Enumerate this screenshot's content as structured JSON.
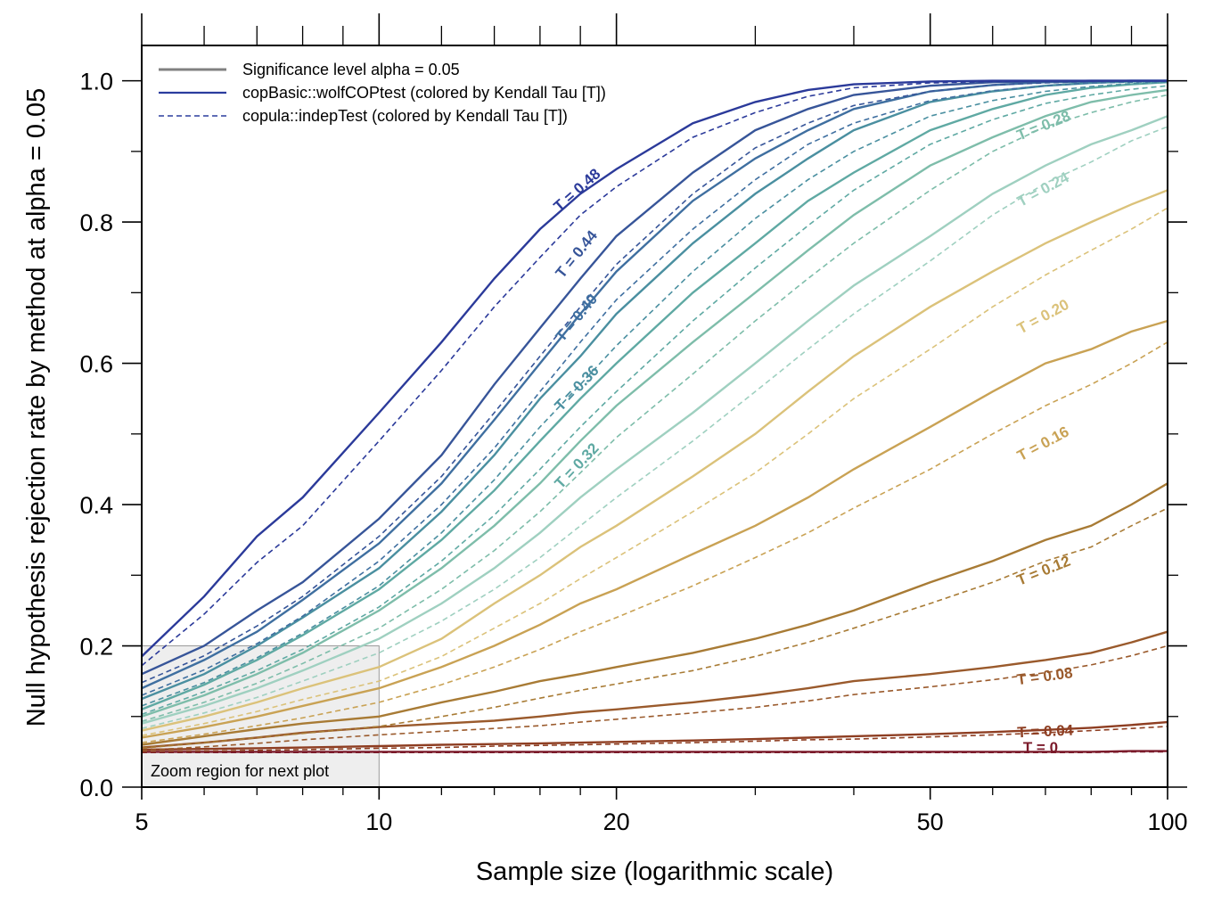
{
  "chart_data": {
    "type": "line",
    "xlabel": "Sample size (logarithmic scale)",
    "ylabel": "Null hypothesis rejection rate by method at alpha = 0.05",
    "x_scale": "log",
    "xlim": [
      5,
      100
    ],
    "ylim": [
      0,
      1.05
    ],
    "x_ticks": [
      5,
      10,
      20,
      50,
      100
    ],
    "x_minor_ticks": [
      6,
      7,
      8,
      9,
      12,
      14,
      16,
      18,
      30,
      40,
      60,
      70,
      80,
      90
    ],
    "y_ticks": [
      0.0,
      0.2,
      0.4,
      0.6,
      0.8,
      1.0
    ],
    "y_tick_labels": [
      "0.0",
      "0.2",
      "0.4",
      "0.6",
      "0.8",
      "1.0"
    ],
    "y_minor_ticks": [
      0.1,
      0.3,
      0.5,
      0.7,
      0.9
    ],
    "x": [
      5,
      6,
      7,
      8,
      10,
      12,
      14,
      16,
      18,
      20,
      25,
      30,
      35,
      40,
      50,
      60,
      70,
      80,
      90,
      100
    ],
    "legend": {
      "placement": "top-left",
      "entries": [
        {
          "label": "Significance level alpha = 0.05",
          "style": "solid",
          "color": "#808080"
        },
        {
          "label": "copBasic::wolfCOPtest (colored by Kendall Tau [T])",
          "style": "solid",
          "color": "#2b3d9e"
        },
        {
          "label": "copula::indepTest (colored by Kendall Tau [T])",
          "style": "dashed",
          "color": "#2b3d9e"
        }
      ]
    },
    "zoom_region": {
      "label": "Zoom region for next plot",
      "x": [
        5,
        10
      ],
      "y": [
        0,
        0.2
      ]
    },
    "series": [
      {
        "name": "T = 0",
        "tau": 0,
        "color": "#7b1a2a",
        "label_pos": {
          "x": 69,
          "y": 0.049
        },
        "wolf": [
          0.05,
          0.05,
          0.05,
          0.05,
          0.05,
          0.05,
          0.05,
          0.05,
          0.05,
          0.05,
          0.05,
          0.05,
          0.05,
          0.05,
          0.05,
          0.05,
          0.05,
          0.05,
          0.051,
          0.051
        ],
        "indep": [
          0.049,
          0.049,
          0.049,
          0.049,
          0.049,
          0.049,
          0.049,
          0.049,
          0.049,
          0.049,
          0.049,
          0.049,
          0.049,
          0.049,
          0.049,
          0.049,
          0.049,
          0.049,
          0.05,
          0.05
        ]
      },
      {
        "name": "T = 0.04",
        "tau": 0.04,
        "color": "#8e3e22",
        "label_pos": {
          "x": 70,
          "y": 0.072
        },
        "wolf": [
          0.053,
          0.054,
          0.055,
          0.056,
          0.058,
          0.06,
          0.061,
          0.062,
          0.063,
          0.064,
          0.066,
          0.068,
          0.07,
          0.072,
          0.075,
          0.078,
          0.081,
          0.084,
          0.088,
          0.092
        ],
        "indep": [
          0.05,
          0.051,
          0.052,
          0.053,
          0.055,
          0.056,
          0.058,
          0.059,
          0.06,
          0.061,
          0.063,
          0.065,
          0.067,
          0.068,
          0.071,
          0.074,
          0.077,
          0.08,
          0.083,
          0.086
        ]
      },
      {
        "name": "T = 0.08",
        "tau": 0.08,
        "color": "#9a5a2c",
        "label_pos": {
          "x": 70,
          "y": 0.15
        },
        "wolf": [
          0.056,
          0.063,
          0.07,
          0.077,
          0.085,
          0.09,
          0.094,
          0.1,
          0.106,
          0.11,
          0.12,
          0.13,
          0.14,
          0.15,
          0.16,
          0.17,
          0.18,
          0.19,
          0.205,
          0.22
        ],
        "indep": [
          0.052,
          0.057,
          0.062,
          0.067,
          0.074,
          0.079,
          0.083,
          0.087,
          0.092,
          0.096,
          0.105,
          0.113,
          0.122,
          0.131,
          0.142,
          0.152,
          0.162,
          0.173,
          0.186,
          0.2
        ]
      },
      {
        "name": "T = 0.12",
        "tau": 0.12,
        "color": "#a87b35",
        "label_pos": {
          "x": 70,
          "y": 0.3
        },
        "wolf": [
          0.06,
          0.072,
          0.082,
          0.09,
          0.1,
          0.12,
          0.135,
          0.15,
          0.16,
          0.17,
          0.19,
          0.21,
          0.23,
          0.25,
          0.29,
          0.32,
          0.35,
          0.37,
          0.4,
          0.43
        ],
        "indep": [
          0.055,
          0.063,
          0.07,
          0.076,
          0.086,
          0.1,
          0.113,
          0.126,
          0.137,
          0.146,
          0.165,
          0.185,
          0.205,
          0.225,
          0.26,
          0.29,
          0.32,
          0.34,
          0.37,
          0.395
        ]
      },
      {
        "name": "T = 0.16",
        "tau": 0.16,
        "color": "#c9a254",
        "label_pos": {
          "x": 70,
          "y": 0.48
        },
        "wolf": [
          0.07,
          0.085,
          0.1,
          0.115,
          0.14,
          0.17,
          0.2,
          0.23,
          0.26,
          0.28,
          0.33,
          0.37,
          0.41,
          0.45,
          0.51,
          0.56,
          0.6,
          0.62,
          0.645,
          0.66
        ],
        "indep": [
          0.063,
          0.075,
          0.087,
          0.098,
          0.12,
          0.145,
          0.17,
          0.195,
          0.22,
          0.24,
          0.285,
          0.325,
          0.36,
          0.395,
          0.45,
          0.5,
          0.54,
          0.57,
          0.6,
          0.63
        ]
      },
      {
        "name": "T = 0.20",
        "tau": 0.2,
        "color": "#dbc27a",
        "label_pos": {
          "x": 70,
          "y": 0.66
        },
        "wolf": [
          0.08,
          0.1,
          0.12,
          0.14,
          0.17,
          0.21,
          0.26,
          0.3,
          0.34,
          0.37,
          0.44,
          0.5,
          0.56,
          0.61,
          0.68,
          0.73,
          0.77,
          0.8,
          0.825,
          0.845
        ],
        "indep": [
          0.073,
          0.09,
          0.107,
          0.124,
          0.15,
          0.185,
          0.225,
          0.26,
          0.295,
          0.325,
          0.39,
          0.445,
          0.5,
          0.55,
          0.62,
          0.68,
          0.725,
          0.76,
          0.79,
          0.82
        ]
      },
      {
        "name": "T = 0.24",
        "tau": 0.24,
        "color": "#9fd0c0",
        "label_pos": {
          "x": 70,
          "y": 0.84
        },
        "wolf": [
          0.09,
          0.115,
          0.14,
          0.165,
          0.21,
          0.26,
          0.31,
          0.36,
          0.41,
          0.45,
          0.53,
          0.6,
          0.66,
          0.71,
          0.78,
          0.84,
          0.88,
          0.91,
          0.93,
          0.95
        ],
        "indep": [
          0.083,
          0.105,
          0.127,
          0.15,
          0.19,
          0.235,
          0.28,
          0.325,
          0.37,
          0.41,
          0.49,
          0.56,
          0.62,
          0.67,
          0.745,
          0.81,
          0.855,
          0.885,
          0.915,
          0.935
        ]
      },
      {
        "name": "T = 0.28",
        "tau": 0.28,
        "color": "#7ebdaa",
        "label_pos": {
          "x": 70,
          "y": 0.93
        },
        "wolf": [
          0.1,
          0.13,
          0.16,
          0.19,
          0.25,
          0.31,
          0.37,
          0.43,
          0.49,
          0.54,
          0.63,
          0.7,
          0.76,
          0.81,
          0.88,
          0.92,
          0.95,
          0.97,
          0.98,
          0.987
        ],
        "indep": [
          0.093,
          0.12,
          0.147,
          0.175,
          0.225,
          0.28,
          0.335,
          0.39,
          0.445,
          0.495,
          0.585,
          0.66,
          0.72,
          0.77,
          0.845,
          0.9,
          0.935,
          0.955,
          0.97,
          0.98
        ]
      },
      {
        "name": "T = 0.32",
        "tau": 0.32,
        "color": "#5fa9a3",
        "label_pos": {
          "x": 18,
          "y": 0.45
        },
        "wolf": [
          0.11,
          0.145,
          0.18,
          0.215,
          0.28,
          0.35,
          0.42,
          0.49,
          0.55,
          0.6,
          0.7,
          0.77,
          0.83,
          0.87,
          0.93,
          0.96,
          0.98,
          0.99,
          0.995,
          0.998
        ],
        "indep": [
          0.103,
          0.135,
          0.165,
          0.195,
          0.255,
          0.32,
          0.385,
          0.45,
          0.51,
          0.56,
          0.66,
          0.735,
          0.795,
          0.845,
          0.91,
          0.945,
          0.968,
          0.98,
          0.988,
          0.993
        ]
      },
      {
        "name": "T = 0.36",
        "tau": 0.36,
        "color": "#4a8fa0",
        "label_pos": {
          "x": 18,
          "y": 0.56
        },
        "wolf": [
          0.125,
          0.16,
          0.2,
          0.24,
          0.31,
          0.39,
          0.47,
          0.55,
          0.61,
          0.67,
          0.77,
          0.84,
          0.89,
          0.93,
          0.97,
          0.985,
          0.993,
          0.997,
          0.999,
          1.0
        ],
        "indep": [
          0.115,
          0.148,
          0.183,
          0.218,
          0.285,
          0.36,
          0.435,
          0.51,
          0.57,
          0.625,
          0.73,
          0.805,
          0.86,
          0.9,
          0.95,
          0.972,
          0.985,
          0.992,
          0.996,
          0.998
        ]
      },
      {
        "name": "T = 0.40",
        "tau": 0.4,
        "color": "#3f6fa0",
        "label_pos": {
          "x": 18,
          "y": 0.66
        },
        "wolf": [
          0.14,
          0.18,
          0.22,
          0.265,
          0.345,
          0.43,
          0.52,
          0.6,
          0.67,
          0.73,
          0.83,
          0.89,
          0.93,
          0.96,
          0.985,
          0.994,
          0.998,
          0.999,
          1.0,
          1.0
        ],
        "indep": [
          0.13,
          0.166,
          0.203,
          0.242,
          0.32,
          0.4,
          0.48,
          0.56,
          0.63,
          0.69,
          0.79,
          0.86,
          0.91,
          0.94,
          0.972,
          0.986,
          0.993,
          0.997,
          0.998,
          0.999
        ]
      },
      {
        "name": "T = 0.44",
        "tau": 0.44,
        "color": "#375599",
        "label_pos": {
          "x": 18,
          "y": 0.75
        },
        "wolf": [
          0.16,
          0.2,
          0.25,
          0.29,
          0.38,
          0.47,
          0.57,
          0.65,
          0.72,
          0.78,
          0.87,
          0.93,
          0.96,
          0.98,
          0.993,
          0.998,
          0.999,
          1.0,
          1.0,
          1.0
        ],
        "indep": [
          0.148,
          0.186,
          0.228,
          0.27,
          0.355,
          0.44,
          0.53,
          0.61,
          0.68,
          0.74,
          0.84,
          0.905,
          0.94,
          0.965,
          0.985,
          0.994,
          0.997,
          0.999,
          1.0,
          1.0
        ]
      },
      {
        "name": "T = 0.48",
        "tau": 0.48,
        "color": "#2b3a9a",
        "label_pos": {
          "x": 18,
          "y": 0.84
        },
        "wolf": [
          0.185,
          0.27,
          0.355,
          0.41,
          0.53,
          0.63,
          0.72,
          0.79,
          0.84,
          0.875,
          0.94,
          0.97,
          0.987,
          0.995,
          0.999,
          1.0,
          1.0,
          1.0,
          1.0,
          1.0
        ],
        "indep": [
          0.172,
          0.245,
          0.318,
          0.37,
          0.49,
          0.59,
          0.68,
          0.75,
          0.81,
          0.85,
          0.92,
          0.955,
          0.978,
          0.99,
          0.997,
          0.999,
          1.0,
          1.0,
          1.0,
          1.0
        ]
      }
    ]
  }
}
